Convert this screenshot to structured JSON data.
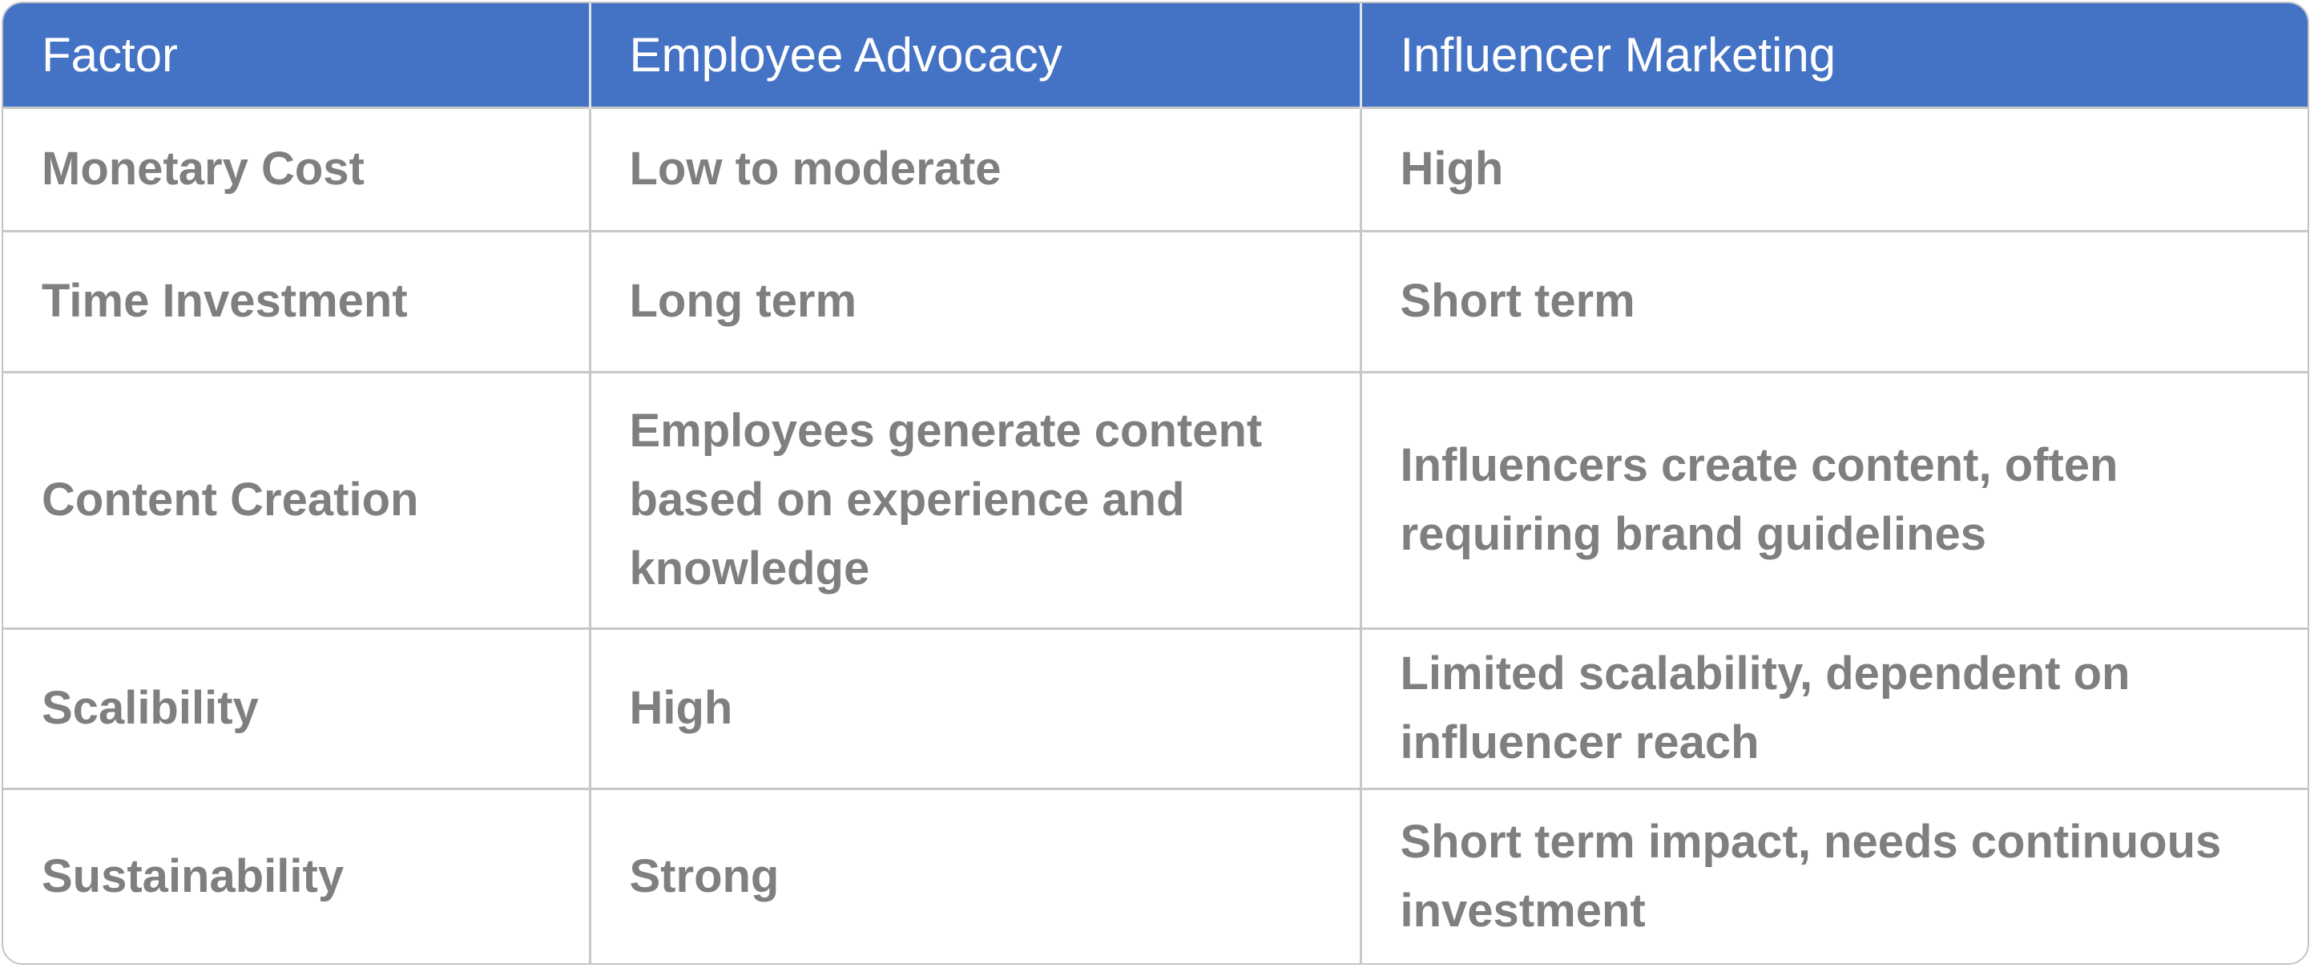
{
  "headers": [
    "Factor",
    "Employee Advocacy",
    "Influencer Marketing"
  ],
  "rows": [
    [
      "Monetary Cost",
      "Low to moderate",
      "High"
    ],
    [
      "Time Investment",
      "Long term",
      "Short term"
    ],
    [
      "Content Creation",
      "Employees generate content based on experience and knowledge",
      "Influencers create content, often requiring brand guidelines"
    ],
    [
      "Scalibility",
      "High",
      "Limited scalability, dependent on influencer reach"
    ],
    [
      "Sustainability",
      "Strong",
      "Short term impact, needs continuous investment"
    ]
  ],
  "colors": {
    "header_bg": "#4472c4",
    "header_text": "#ffffff",
    "cell_text": "#7f7f7f",
    "grid": "#c8c8c8"
  }
}
